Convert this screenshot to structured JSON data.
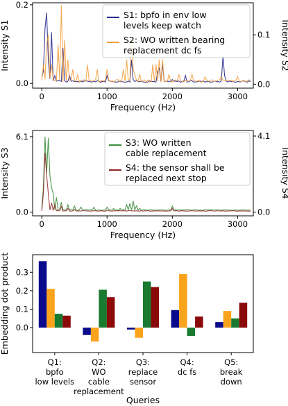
{
  "chart_data": [
    {
      "type": "line",
      "xlabel": "Frequency (Hz)",
      "ylabel": "Intensity S1",
      "ylabel_right": "Intensity S2",
      "xlim": [
        -140,
        3240
      ],
      "ylim": [
        -0.012,
        0.205
      ],
      "ylim_right": [
        -0.008,
        0.165
      ],
      "xticks": [
        0,
        1000,
        2000,
        3000
      ],
      "yticks": [
        0.0,
        0.2
      ],
      "yticks_right": [
        0.0,
        0.1
      ],
      "legend_position": "top-right",
      "series": [
        {
          "name": "S1: bpfo in env low\nlevels keep watch",
          "color": "#2a2a8f",
          "axis": "left",
          "baseline": 0.003,
          "noise": 0.004,
          "peaks": [
            [
              25,
              0.03
            ],
            [
              50,
              0.14
            ],
            [
              75,
              0.18
            ],
            [
              100,
              0.06
            ],
            [
              150,
              0.13
            ],
            [
              200,
              0.02
            ],
            [
              325,
              0.09
            ],
            [
              420,
              0.02
            ],
            [
              1000,
              0.02
            ],
            [
              1375,
              0.06
            ],
            [
              1400,
              0.01
            ],
            [
              1775,
              0.03
            ],
            [
              1800,
              0.04
            ],
            [
              1850,
              0.05
            ],
            [
              2000,
              0.01
            ],
            [
              2200,
              0.02
            ],
            [
              2775,
              0.07
            ],
            [
              2800,
              0.02
            ]
          ]
        },
        {
          "name": "S2: WO written bearing\nreplacement dc fs",
          "color": "#f59d38",
          "axis": "right",
          "baseline": 0.004,
          "noise": 0.005,
          "peaks": [
            [
              30,
              0.04
            ],
            [
              75,
              0.08
            ],
            [
              110,
              0.1
            ],
            [
              150,
              0.04
            ],
            [
              250,
              0.08
            ],
            [
              300,
              0.16
            ],
            [
              340,
              0.09
            ],
            [
              400,
              0.05
            ],
            [
              480,
              0.03
            ],
            [
              550,
              0.02
            ],
            [
              700,
              0.04
            ],
            [
              850,
              0.03
            ],
            [
              1000,
              0.03
            ],
            [
              1250,
              0.03
            ],
            [
              1300,
              0.05
            ],
            [
              1380,
              0.1
            ],
            [
              1400,
              0.03
            ],
            [
              1430,
              0.02
            ],
            [
              1500,
              0.02
            ],
            [
              1700,
              0.04
            ],
            [
              1750,
              0.04
            ],
            [
              1800,
              0.05
            ],
            [
              1850,
              0.05
            ],
            [
              1950,
              0.02
            ],
            [
              2100,
              0.02
            ],
            [
              2300,
              0.02
            ],
            [
              2500,
              0.015
            ],
            [
              2750,
              0.015
            ],
            [
              3000,
              0.015
            ]
          ]
        }
      ]
    },
    {
      "type": "line",
      "xlabel": "Frequency (Hz)",
      "ylabel": "Intensity S3",
      "ylabel_right": "Intensity S4",
      "xlim": [
        -140,
        3240
      ],
      "ylim": [
        -0.3,
        6.6
      ],
      "ylim_right": [
        -0.2,
        4.4
      ],
      "xticks": [
        0,
        1000,
        2000,
        3000
      ],
      "yticks": [
        0.0,
        6.1
      ],
      "yticks_right": [
        0.0,
        4.1
      ],
      "legend_position": "top-right",
      "series": [
        {
          "name": "S3: WO written\ncable replacement",
          "color": "#3c8e3c",
          "axis": "left",
          "baseline": 0.15,
          "noise": 0.05,
          "peaks": [
            [
              25,
              2.0
            ],
            [
              50,
              6.1
            ],
            [
              75,
              3.1
            ],
            [
              100,
              6.0
            ],
            [
              125,
              3.0
            ],
            [
              150,
              2.0
            ],
            [
              175,
              1.5
            ],
            [
              225,
              1.2
            ],
            [
              300,
              0.8
            ],
            [
              400,
              0.6
            ],
            [
              500,
              0.5
            ],
            [
              600,
              0.4
            ],
            [
              800,
              0.4
            ],
            [
              1000,
              0.4
            ],
            [
              1100,
              0.3
            ],
            [
              1200,
              0.3
            ],
            [
              1300,
              0.6
            ],
            [
              1350,
              0.7
            ],
            [
              1400,
              0.9
            ],
            [
              1450,
              0.5
            ],
            [
              1500,
              0.3
            ],
            [
              2000,
              0.5
            ],
            [
              2500,
              0.1
            ]
          ]
        },
        {
          "name": "S4: the sensor shall be\nreplaced next stop",
          "color": "#8f2222",
          "axis": "right",
          "baseline": 0.05,
          "noise": 0.03,
          "peaks": [
            [
              25,
              1.0
            ],
            [
              40,
              4.1
            ],
            [
              60,
              3.2
            ],
            [
              75,
              2.0
            ],
            [
              100,
              1.0
            ],
            [
              150,
              0.5
            ],
            [
              200,
              0.4
            ],
            [
              300,
              0.3
            ],
            [
              400,
              0.2
            ],
            [
              500,
              0.15
            ],
            [
              1000,
              0.1
            ],
            [
              2000,
              0.2
            ]
          ]
        }
      ]
    },
    {
      "type": "bar",
      "xlabel": "Queries",
      "ylabel": "Embedding dot product",
      "ylim": [
        -0.135,
        0.395
      ],
      "yticks": [
        0.0,
        0.1,
        0.2,
        0.3
      ],
      "categories": [
        "Q1:\nbpfo\nlow levels",
        "Q2:\nWO\ncable\nreplacement",
        "Q3:\nreplace\nsensor",
        "Q4:\ndc fs",
        "Q5:\nbreak\ndown"
      ],
      "series": [
        {
          "color": "#0a0a8c",
          "values": [
            0.36,
            -0.04,
            -0.01,
            0.095,
            0.03
          ]
        },
        {
          "color": "#fba31b",
          "values": [
            0.21,
            -0.075,
            -0.055,
            0.29,
            0.09
          ]
        },
        {
          "color": "#1a7a30",
          "values": [
            0.075,
            0.205,
            0.25,
            -0.045,
            0.05
          ]
        },
        {
          "color": "#8a0a0a",
          "values": [
            0.065,
            0.165,
            0.22,
            0.06,
            0.135
          ]
        }
      ]
    }
  ]
}
